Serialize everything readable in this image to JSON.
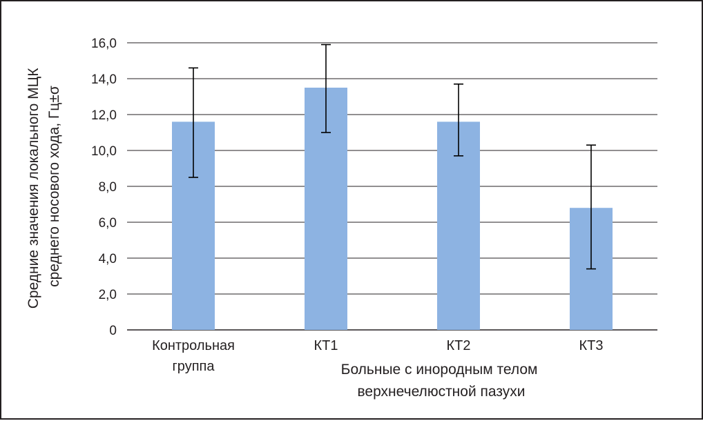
{
  "chart_data": {
    "type": "bar",
    "categories": [
      [
        "Контрольная",
        "группа"
      ],
      [
        "КТ1"
      ],
      [
        "КТ2"
      ],
      [
        "КТ3"
      ]
    ],
    "values": [
      11.6,
      13.5,
      11.6,
      6.8
    ],
    "error_bars": [
      {
        "low": 8.5,
        "high": 14.6
      },
      {
        "low": 11.0,
        "high": 15.9
      },
      {
        "low": 9.7,
        "high": 13.7
      },
      {
        "low": 3.4,
        "high": 10.3
      }
    ],
    "xlabel": [
      "Больные с инородным телом",
      "верхнечелюстной пазухи"
    ],
    "ylabel": [
      "Средние значения локального МЦК",
      "среднего носового хода, Гц±σ"
    ],
    "ylim": [
      0,
      16
    ],
    "yticks": [
      "0",
      "2,0",
      "4,0",
      "6,0",
      "8,0",
      "10,0",
      "12,0",
      "14,0",
      "16,0"
    ],
    "grid": true,
    "legend": "none",
    "colors": {
      "bar": "#8db3e2",
      "grid": "#231f20",
      "error_bar": "#000000",
      "text": "#231f20"
    }
  }
}
